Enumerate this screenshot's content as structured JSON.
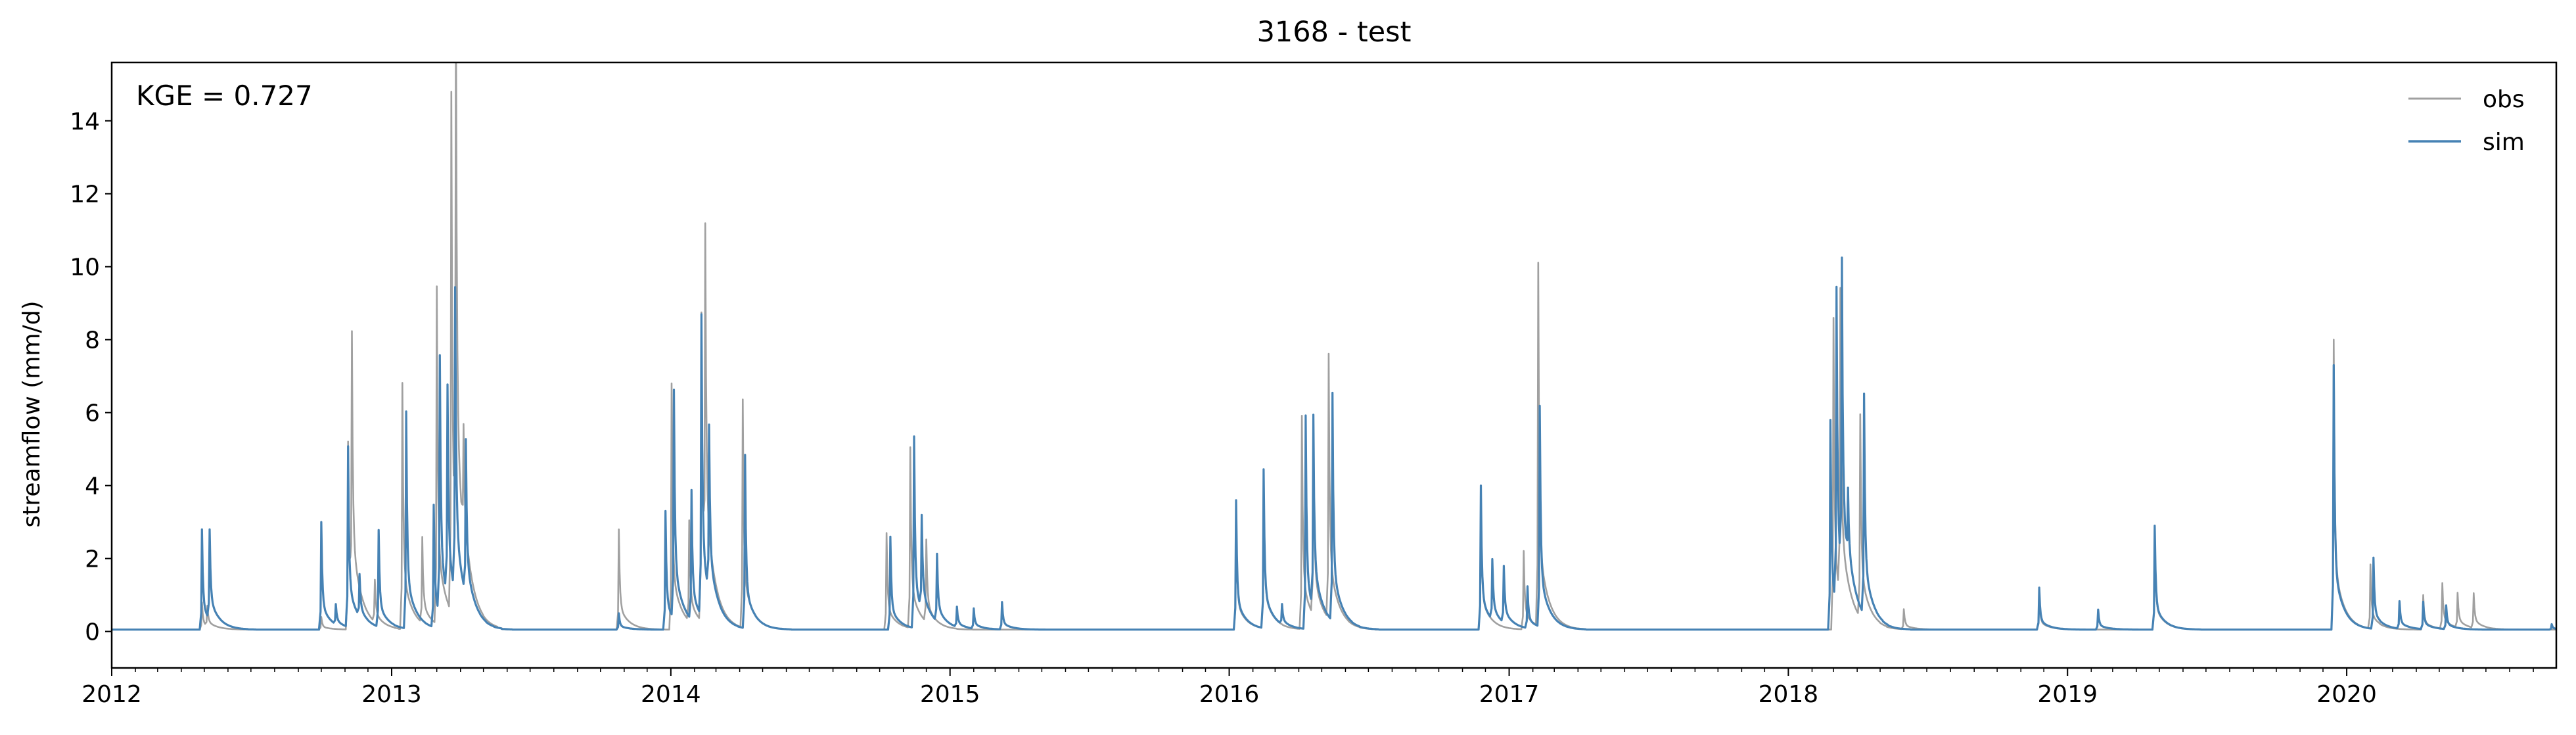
{
  "chart_data": {
    "type": "line",
    "title": "3168 - test",
    "xlabel": "",
    "ylabel": "streamflow (mm/d)",
    "annotation": "KGE = 0.727",
    "xlim": [
      "2012-01-01",
      "2020-10-01"
    ],
    "ylim": [
      -1,
      15.6
    ],
    "xticks": [
      "2012",
      "2013",
      "2014",
      "2015",
      "2016",
      "2017",
      "2018",
      "2019",
      "2020"
    ],
    "yticks": [
      0,
      2,
      4,
      6,
      8,
      10,
      12,
      14
    ],
    "grid": false,
    "legend_position": "top-right",
    "baseflow": {
      "obs": 0.05,
      "sim": 0.05
    },
    "series": [
      {
        "name": "obs",
        "color": "#a0a0a0",
        "peaks": [
          [
            "2012-04-28",
            0.8
          ],
          [
            "2012-05-05",
            0.6
          ],
          [
            "2012-10-01",
            0.4
          ],
          [
            "2012-11-05",
            5.2
          ],
          [
            "2012-11-10",
            7.3
          ],
          [
            "2012-12-10",
            1.2
          ],
          [
            "2013-01-15",
            6.8
          ],
          [
            "2013-02-10",
            2.4
          ],
          [
            "2013-03-01",
            9.3
          ],
          [
            "2013-03-20",
            14.3
          ],
          [
            "2013-03-26",
            14.9
          ],
          [
            "2013-04-05",
            3.0
          ],
          [
            "2013-10-25",
            2.8
          ],
          [
            "2014-01-02",
            6.8
          ],
          [
            "2014-01-25",
            2.8
          ],
          [
            "2014-02-10",
            8.5
          ],
          [
            "2014-02-15",
            9.5
          ],
          [
            "2014-04-05",
            6.3
          ],
          [
            "2014-10-10",
            2.7
          ],
          [
            "2014-11-10",
            5.0
          ],
          [
            "2014-12-01",
            2.3
          ],
          [
            "2016-01-10",
            3.3
          ],
          [
            "2016-02-15",
            4.2
          ],
          [
            "2016-04-05",
            5.9
          ],
          [
            "2016-04-20",
            5.0
          ],
          [
            "2016-05-10",
            7.3
          ],
          [
            "2016-11-25",
            3.8
          ],
          [
            "2017-01-20",
            2.2
          ],
          [
            "2017-02-08",
            10.0
          ],
          [
            "2018-03-01",
            8.6
          ],
          [
            "2018-03-10",
            8.4
          ],
          [
            "2018-04-05",
            5.6
          ],
          [
            "2018-06-01",
            0.6
          ],
          [
            "2018-11-25",
            1.0
          ],
          [
            "2019-04-25",
            2.7
          ],
          [
            "2019-12-15",
            8.0
          ],
          [
            "2020-02-01",
            1.8
          ],
          [
            "2020-04-10",
            1.0
          ],
          [
            "2020-05-05",
            1.3
          ],
          [
            "2020-05-25",
            1.0
          ],
          [
            "2020-06-15",
            1.0
          ]
        ]
      },
      {
        "name": "sim",
        "color": "#4682b4",
        "peaks": [
          [
            "2012-04-28",
            2.8
          ],
          [
            "2012-05-08",
            2.5
          ],
          [
            "2012-10-01",
            3.0
          ],
          [
            "2012-10-20",
            0.6
          ],
          [
            "2012-11-05",
            5.0
          ],
          [
            "2012-11-20",
            1.2
          ],
          [
            "2012-12-15",
            2.7
          ],
          [
            "2013-01-20",
            6.0
          ],
          [
            "2013-02-25",
            3.4
          ],
          [
            "2013-03-05",
            7.1
          ],
          [
            "2013-03-15",
            5.8
          ],
          [
            "2013-03-25",
            8.4
          ],
          [
            "2013-04-08",
            4.3
          ],
          [
            "2013-10-25",
            0.5
          ],
          [
            "2013-12-25",
            3.3
          ],
          [
            "2014-01-05",
            6.3
          ],
          [
            "2014-01-28",
            3.6
          ],
          [
            "2014-02-10",
            8.3
          ],
          [
            "2014-02-20",
            4.6
          ],
          [
            "2014-04-08",
            4.8
          ],
          [
            "2014-10-15",
            2.6
          ],
          [
            "2014-11-15",
            5.3
          ],
          [
            "2014-11-25",
            2.6
          ],
          [
            "2014-12-15",
            1.9
          ],
          [
            "2015-01-10",
            0.6
          ],
          [
            "2015-02-01",
            0.6
          ],
          [
            "2015-03-10",
            0.8
          ],
          [
            "2016-01-10",
            3.6
          ],
          [
            "2016-02-15",
            4.4
          ],
          [
            "2016-03-10",
            0.6
          ],
          [
            "2016-04-10",
            5.9
          ],
          [
            "2016-04-20",
            5.3
          ],
          [
            "2016-05-15",
            6.3
          ],
          [
            "2016-11-25",
            4.0
          ],
          [
            "2016-12-10",
            1.7
          ],
          [
            "2016-12-25",
            1.6
          ],
          [
            "2017-01-25",
            1.2
          ],
          [
            "2017-02-10",
            6.1
          ],
          [
            "2018-02-25",
            5.8
          ],
          [
            "2018-03-05",
            8.7
          ],
          [
            "2018-03-12",
            8.6
          ],
          [
            "2018-03-20",
            2.0
          ],
          [
            "2018-04-10",
            6.1
          ],
          [
            "2018-11-25",
            1.2
          ],
          [
            "2019-02-10",
            0.6
          ],
          [
            "2019-04-25",
            2.9
          ],
          [
            "2019-12-15",
            7.3
          ],
          [
            "2020-02-05",
            2.0
          ],
          [
            "2020-03-10",
            0.8
          ],
          [
            "2020-04-10",
            0.8
          ],
          [
            "2020-05-10",
            0.7
          ],
          [
            "2020-09-25",
            0.2
          ]
        ]
      }
    ]
  }
}
